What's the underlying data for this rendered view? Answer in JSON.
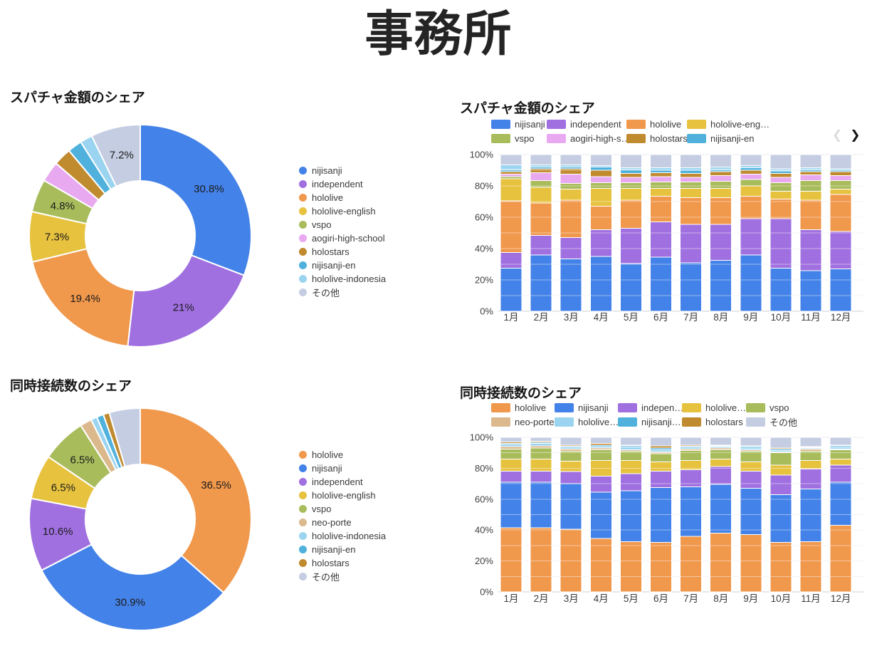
{
  "page": {
    "title": "事務所"
  },
  "colors": {
    "nijisanji": "#4382e8",
    "independent": "#a070e0",
    "hololive": "#f0984c",
    "hololive-english": "#e7c23f",
    "vspo": "#a8bc5c",
    "aogiri-high-school": "#e8a9f0",
    "holostars": "#c08a2f",
    "nijisanji-en": "#4fb1dc",
    "hololive-indonesia": "#9bd4f0",
    "neo-porte": "#dbb98d",
    "その他": "#c5cde2"
  },
  "chart_data": [
    {
      "id": "superchat-share-donut",
      "type": "pie",
      "donut": true,
      "title": "スパチャ金額のシェア",
      "legend_position": "right",
      "labels": [
        "nijisanji",
        "independent",
        "hololive",
        "hololive-english",
        "vspo",
        "aogiri-high-school",
        "holostars",
        "nijisanji-en",
        "hololive-indonesia",
        "その他"
      ],
      "values": [
        30.8,
        21,
        19.4,
        7.3,
        4.8,
        3.0,
        2.6,
        2.1,
        1.8,
        7.2
      ],
      "display_labels": [
        "30.8%",
        "21%",
        "19.4%",
        "7.3%",
        "4.8%",
        "",
        "",
        "",
        "",
        "7.2%"
      ]
    },
    {
      "id": "superchat-share-monthly",
      "type": "bar",
      "stacked_percent": true,
      "title": "スパチャ金額のシェア",
      "categories": [
        "1月",
        "2月",
        "3月",
        "4月",
        "5月",
        "6月",
        "7月",
        "8月",
        "9月",
        "10月",
        "11月",
        "12月"
      ],
      "y_ticks": [
        "0%",
        "20%",
        "40%",
        "60%",
        "80%",
        "100%"
      ],
      "ylim": [
        0,
        100
      ],
      "grid": true,
      "legend_position": "top",
      "series": [
        {
          "name": "nijisanji",
          "values": [
            27.5,
            36,
            33.5,
            35,
            30.5,
            34.5,
            31,
            32.5,
            36,
            27.5,
            26,
            27
          ]
        },
        {
          "name": "independent",
          "values": [
            10,
            12.5,
            13.5,
            17,
            22.5,
            22.5,
            24.5,
            23,
            23,
            31.5,
            26,
            24
          ]
        },
        {
          "name": "hololive",
          "values": [
            33,
            20.5,
            24,
            15,
            18,
            16.5,
            17,
            17,
            14.5,
            12.5,
            19,
            23.5
          ]
        },
        {
          "name": "hololive-english",
          "values": [
            14,
            10,
            7,
            11.5,
            7.5,
            5,
            6,
            6,
            6.5,
            5,
            5.5,
            3.5
          ]
        },
        {
          "name": "vspo",
          "values": [
            1.5,
            4.5,
            3.5,
            3.5,
            3.5,
            4,
            4,
            4.5,
            4,
            5.5,
            7,
            5.5
          ]
        },
        {
          "name": "aogiri-high-school",
          "values": [
            1.5,
            5,
            6,
            4,
            3.5,
            3.5,
            3,
            3.5,
            3.5,
            3.5,
            3.5,
            3
          ]
        },
        {
          "name": "holostars",
          "values": [
            1.5,
            2.5,
            3.5,
            4,
            2.5,
            2.5,
            2.5,
            2.5,
            2.5,
            2.5,
            2,
            2.5
          ]
        },
        {
          "name": "nijisanji-en",
          "values": [
            1.5,
            1,
            1,
            2,
            2.5,
            1.5,
            2,
            1.5,
            1.5,
            1.5,
            1.5,
            1
          ]
        },
        {
          "name": "hololive-indonesia",
          "values": [
            3,
            1.5,
            1.5,
            1,
            1,
            1.5,
            1.5,
            1.5,
            1.5,
            1.5,
            1,
            1
          ]
        },
        {
          "name": "その他",
          "values": [
            6.5,
            6.5,
            6.5,
            7,
            8.5,
            8.5,
            8.5,
            8,
            7,
            9,
            8.5,
            9
          ]
        }
      ],
      "legend_rows": [
        [
          {
            "key": "nijisanji",
            "label": "nijisanji"
          },
          {
            "key": "independent",
            "label": "independent"
          },
          {
            "key": "hololive",
            "label": "hololive"
          },
          {
            "key": "hololive-english",
            "label": "hololive-eng…"
          }
        ],
        [
          {
            "key": "vspo",
            "label": "vspo"
          },
          {
            "key": "aogiri-high-school",
            "label": "aogiri-high-s…"
          },
          {
            "key": "holostars",
            "label": "holostars"
          },
          {
            "key": "nijisanji-en",
            "label": "nijisanji-en"
          }
        ]
      ],
      "legend_nav": {
        "prev": "❮",
        "next": "❯"
      }
    },
    {
      "id": "concurrent-viewers-donut",
      "type": "pie",
      "donut": true,
      "title": "同時接続数のシェア",
      "legend_position": "right",
      "labels": [
        "hololive",
        "nijisanji",
        "independent",
        "hololive-english",
        "vspo",
        "neo-porte",
        "hololive-indonesia",
        "nijisanji-en",
        "holostars",
        "その他"
      ],
      "values": [
        36.5,
        30.9,
        10.6,
        6.5,
        6.5,
        1.7,
        0.9,
        1.0,
        0.9,
        4.5
      ],
      "display_labels": [
        "36.5%",
        "30.9%",
        "10.6%",
        "6.5%",
        "6.5%",
        "",
        "",
        "",
        "",
        ""
      ]
    },
    {
      "id": "concurrent-viewers-monthly",
      "type": "bar",
      "stacked_percent": true,
      "title": "同時接続数のシェア",
      "categories": [
        "1月",
        "2月",
        "3月",
        "4月",
        "5月",
        "6月",
        "7月",
        "8月",
        "9月",
        "10月",
        "11月",
        "12月"
      ],
      "y_ticks": [
        "0%",
        "20%",
        "40%",
        "60%",
        "80%",
        "100%"
      ],
      "ylim": [
        0,
        100
      ],
      "grid": true,
      "legend_position": "top",
      "series": [
        {
          "name": "hololive",
          "values": [
            41.5,
            41.5,
            40.5,
            34.5,
            32.5,
            32,
            36,
            38,
            37,
            32,
            32.5,
            43
          ]
        },
        {
          "name": "nijisanji",
          "values": [
            29.5,
            29.5,
            29.5,
            30,
            33,
            35.5,
            32,
            31.5,
            30,
            31,
            34,
            28
          ]
        },
        {
          "name": "independent",
          "values": [
            7,
            7,
            8,
            10.5,
            11,
            10.5,
            11,
            11.5,
            11,
            12.5,
            13,
            11
          ]
        },
        {
          "name": "hololive-english",
          "values": [
            8,
            8,
            6.5,
            10,
            8.5,
            6,
            6,
            5,
            6,
            6.5,
            5.5,
            4
          ]
        },
        {
          "name": "vspo",
          "values": [
            6.5,
            7,
            6.5,
            7,
            6,
            5.5,
            6.5,
            6,
            7,
            8,
            6,
            6
          ]
        },
        {
          "name": "neo-porte",
          "values": [
            1.5,
            1.5,
            1.5,
            1,
            1,
            1,
            1,
            1,
            1,
            0.5,
            1.5,
            0.5
          ]
        },
        {
          "name": "hololive-indonesia",
          "values": [
            1.5,
            1.5,
            1,
            1,
            1.5,
            1.5,
            1,
            1,
            1,
            1,
            0.5,
            1
          ]
        },
        {
          "name": "nijisanji-en",
          "values": [
            0.7,
            0.7,
            0.8,
            1,
            1,
            1,
            0.7,
            0.5,
            1,
            1,
            0.5,
            1
          ]
        },
        {
          "name": "holostars",
          "values": [
            0.8,
            0.8,
            0.7,
            1,
            0.5,
            1.5,
            0.8,
            0.5,
            0.5,
            0.5,
            0.5,
            0.5
          ]
        },
        {
          "name": "その他",
          "values": [
            3,
            2.5,
            5,
            4,
            5,
            5.5,
            5,
            5,
            5.5,
            7,
            6,
            5
          ]
        }
      ],
      "legend_rows": [
        [
          {
            "key": "hololive",
            "label": "hololive"
          },
          {
            "key": "nijisanji",
            "label": "nijisanji"
          },
          {
            "key": "independent",
            "label": "indepen…"
          },
          {
            "key": "hololive-english",
            "label": "hololive…"
          },
          {
            "key": "vspo",
            "label": "vspo"
          }
        ],
        [
          {
            "key": "neo-porte",
            "label": "neo-porte"
          },
          {
            "key": "hololive-indonesia",
            "label": "hololive…"
          },
          {
            "key": "nijisanji-en",
            "label": "nijisanji…"
          },
          {
            "key": "holostars",
            "label": "holostars"
          },
          {
            "key": "その他",
            "label": "その他"
          }
        ]
      ]
    }
  ]
}
